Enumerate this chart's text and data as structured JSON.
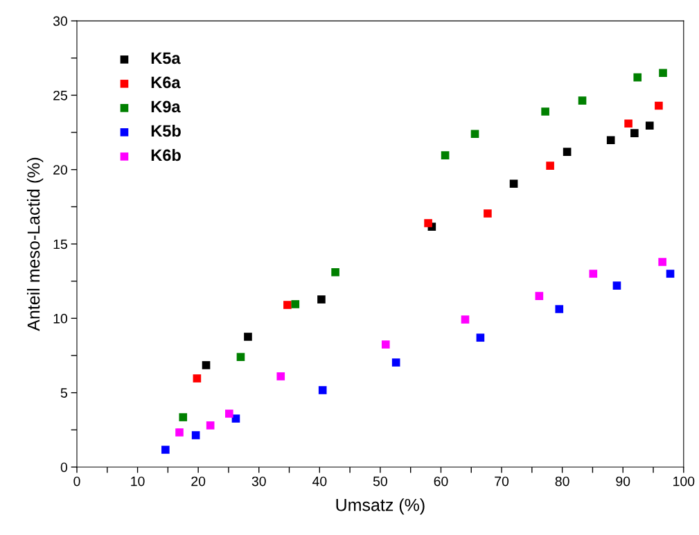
{
  "chart_data": {
    "type": "scatter",
    "xlabel": "Umsatz (%)",
    "ylabel": "Anteil meso-Lactid (%)",
    "xlim": [
      0,
      100
    ],
    "ylim": [
      0,
      30
    ],
    "xticks": [
      0,
      {
        "value": 5,
        "label": null
      },
      10,
      {
        "value": 15,
        "label": null
      },
      20,
      {
        "value": 25,
        "label": null
      },
      30,
      {
        "value": 35,
        "label": null
      },
      40,
      {
        "value": 45,
        "label": null
      },
      50,
      {
        "value": 55,
        "label": null
      },
      60,
      {
        "value": 65,
        "label": null
      },
      70,
      {
        "value": 75,
        "label": null
      },
      80,
      {
        "value": 85,
        "label": null
      },
      90,
      {
        "value": 95,
        "label": null
      },
      100
    ],
    "yticks": [
      0,
      {
        "value": 2.5,
        "label": null
      },
      5,
      {
        "value": 7.5,
        "label": null
      },
      10,
      {
        "value": 12.5,
        "label": null
      },
      15,
      {
        "value": 17.5,
        "label": null
      },
      20,
      {
        "value": 22.5,
        "label": null
      },
      25,
      {
        "value": 27.5,
        "label": null
      },
      30
    ],
    "marker": "square",
    "legend": "top left",
    "grid": false,
    "series": [
      {
        "name": "K5a",
        "color": "#000000",
        "x": [
          21.3,
          28.2,
          40.3,
          58.5,
          72.0,
          80.8,
          88.0,
          91.9,
          94.4
        ],
        "values": [
          6.85,
          8.76,
          11.27,
          16.16,
          19.05,
          21.19,
          21.98,
          22.45,
          22.96
        ]
      },
      {
        "name": "K6a",
        "color": "#ff0000",
        "x": [
          19.8,
          34.7,
          57.9,
          67.7,
          78.0,
          90.9,
          95.9
        ],
        "values": [
          5.96,
          10.9,
          16.4,
          17.05,
          20.26,
          23.1,
          24.3
        ]
      },
      {
        "name": "K9a",
        "color": "#008000",
        "x": [
          17.5,
          27.0,
          36.0,
          42.6,
          60.7,
          65.6,
          77.2,
          83.3,
          92.4,
          96.6
        ],
        "values": [
          3.35,
          7.4,
          10.95,
          13.1,
          20.96,
          22.4,
          23.9,
          24.64,
          26.2,
          26.5
        ]
      },
      {
        "name": "K5b",
        "color": "#0000ff",
        "x": [
          14.6,
          19.6,
          26.2,
          40.5,
          52.6,
          66.5,
          79.5,
          89.0,
          97.8
        ],
        "values": [
          1.16,
          2.14,
          3.26,
          5.17,
          7.03,
          8.7,
          10.62,
          12.2,
          13.0
        ]
      },
      {
        "name": "K6b",
        "color": "#ff00ff",
        "x": [
          16.9,
          22.0,
          25.1,
          33.6,
          50.9,
          64.0,
          76.2,
          85.1,
          96.5
        ],
        "values": [
          2.33,
          2.8,
          3.59,
          6.1,
          8.24,
          9.92,
          11.5,
          13.0,
          13.79
        ]
      }
    ]
  }
}
